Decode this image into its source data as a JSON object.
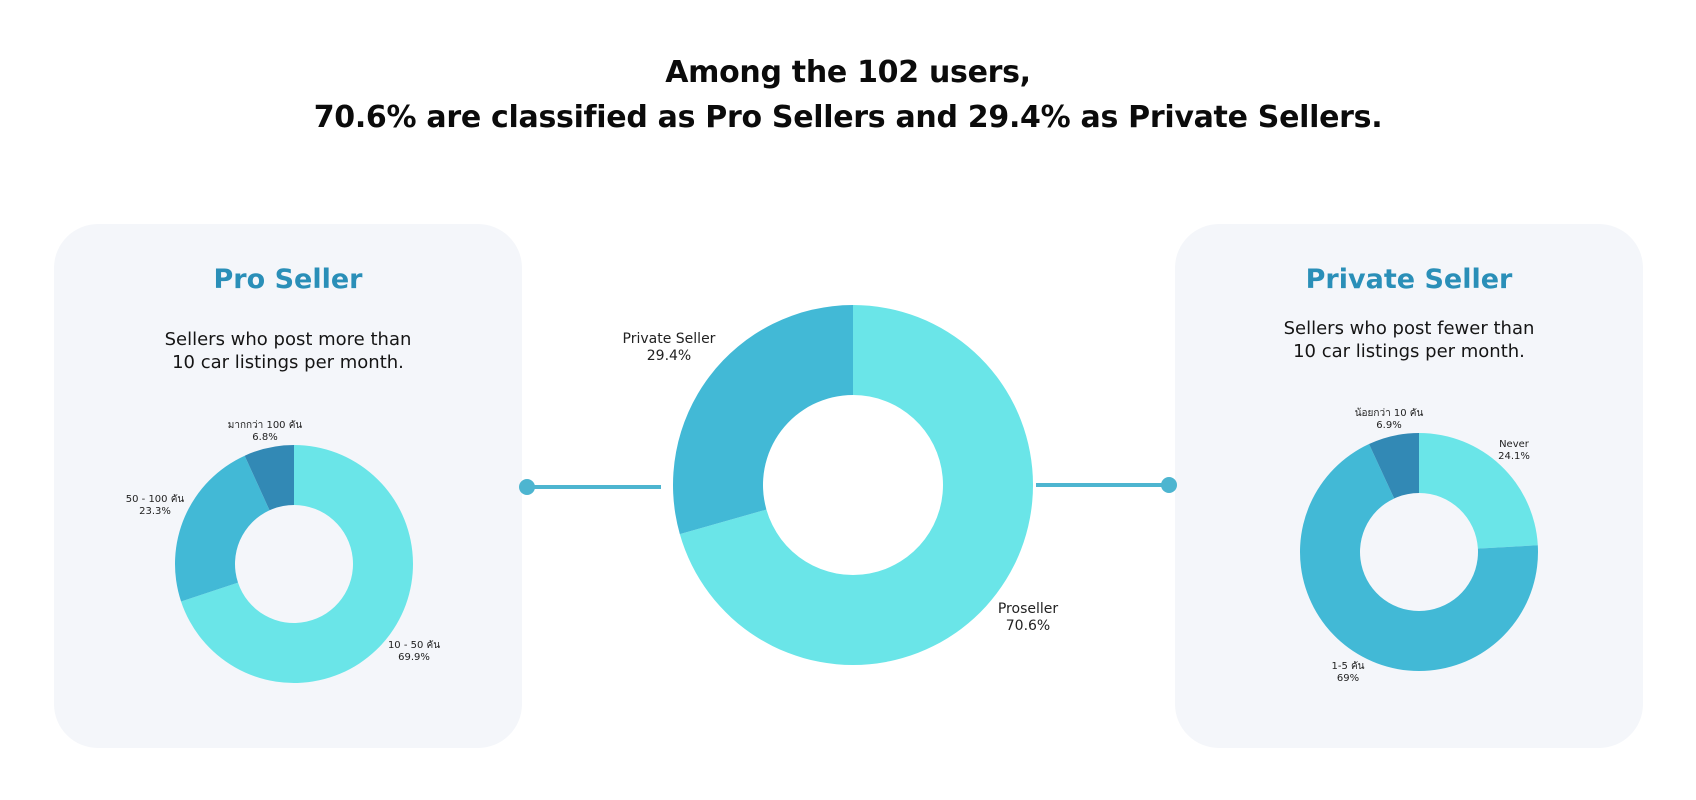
{
  "headline": {
    "line1": "Among the 102 users,",
    "line2": "70.6% are classified as Pro Sellers and 29.4% as Private Sellers."
  },
  "colors": {
    "light": "#6ae5e8",
    "mid": "#42b9d6",
    "dark": "#3289b5",
    "accent": "#2a8fb8",
    "card": "#f4f6fa",
    "connector": "#4db5d0"
  },
  "pro_card": {
    "title": "Pro Seller",
    "desc_line1": "Sellers who post more than",
    "desc_line2": "10 car listings per month."
  },
  "private_card": {
    "title": "Private Seller",
    "desc_line1": "Sellers who post fewer than",
    "desc_line2": "10 car listings per month."
  },
  "chart_data": [
    {
      "type": "pie",
      "slices": [
        {
          "label": "10 - 50 คัน",
          "value": 69.9,
          "value_label": "69.9%",
          "color": "#6ae5e8"
        },
        {
          "label": "50 - 100 คัน",
          "value": 23.3,
          "value_label": "23.3%",
          "color": "#42b9d6"
        },
        {
          "label": "มากกว่า 100 คัน",
          "value": 6.8,
          "value_label": "6.8%",
          "color": "#3289b5"
        }
      ]
    },
    {
      "type": "pie",
      "slices": [
        {
          "label": "Proseller",
          "value": 70.6,
          "value_label": "70.6%",
          "color": "#6ae5e8"
        },
        {
          "label": "Private Seller",
          "value": 29.4,
          "value_label": "29.4%",
          "color": "#42b9d6"
        }
      ]
    },
    {
      "type": "pie",
      "slices": [
        {
          "label": "Never",
          "value": 24.1,
          "value_label": "24.1%",
          "color": "#6ae5e8"
        },
        {
          "label": "1-5 คัน",
          "value": 69,
          "value_label": "69%",
          "color": "#42b9d6"
        },
        {
          "label": "น้อยกว่า 10 คัน",
          "value": 6.9,
          "value_label": "6.9%",
          "color": "#3289b5"
        }
      ]
    }
  ]
}
